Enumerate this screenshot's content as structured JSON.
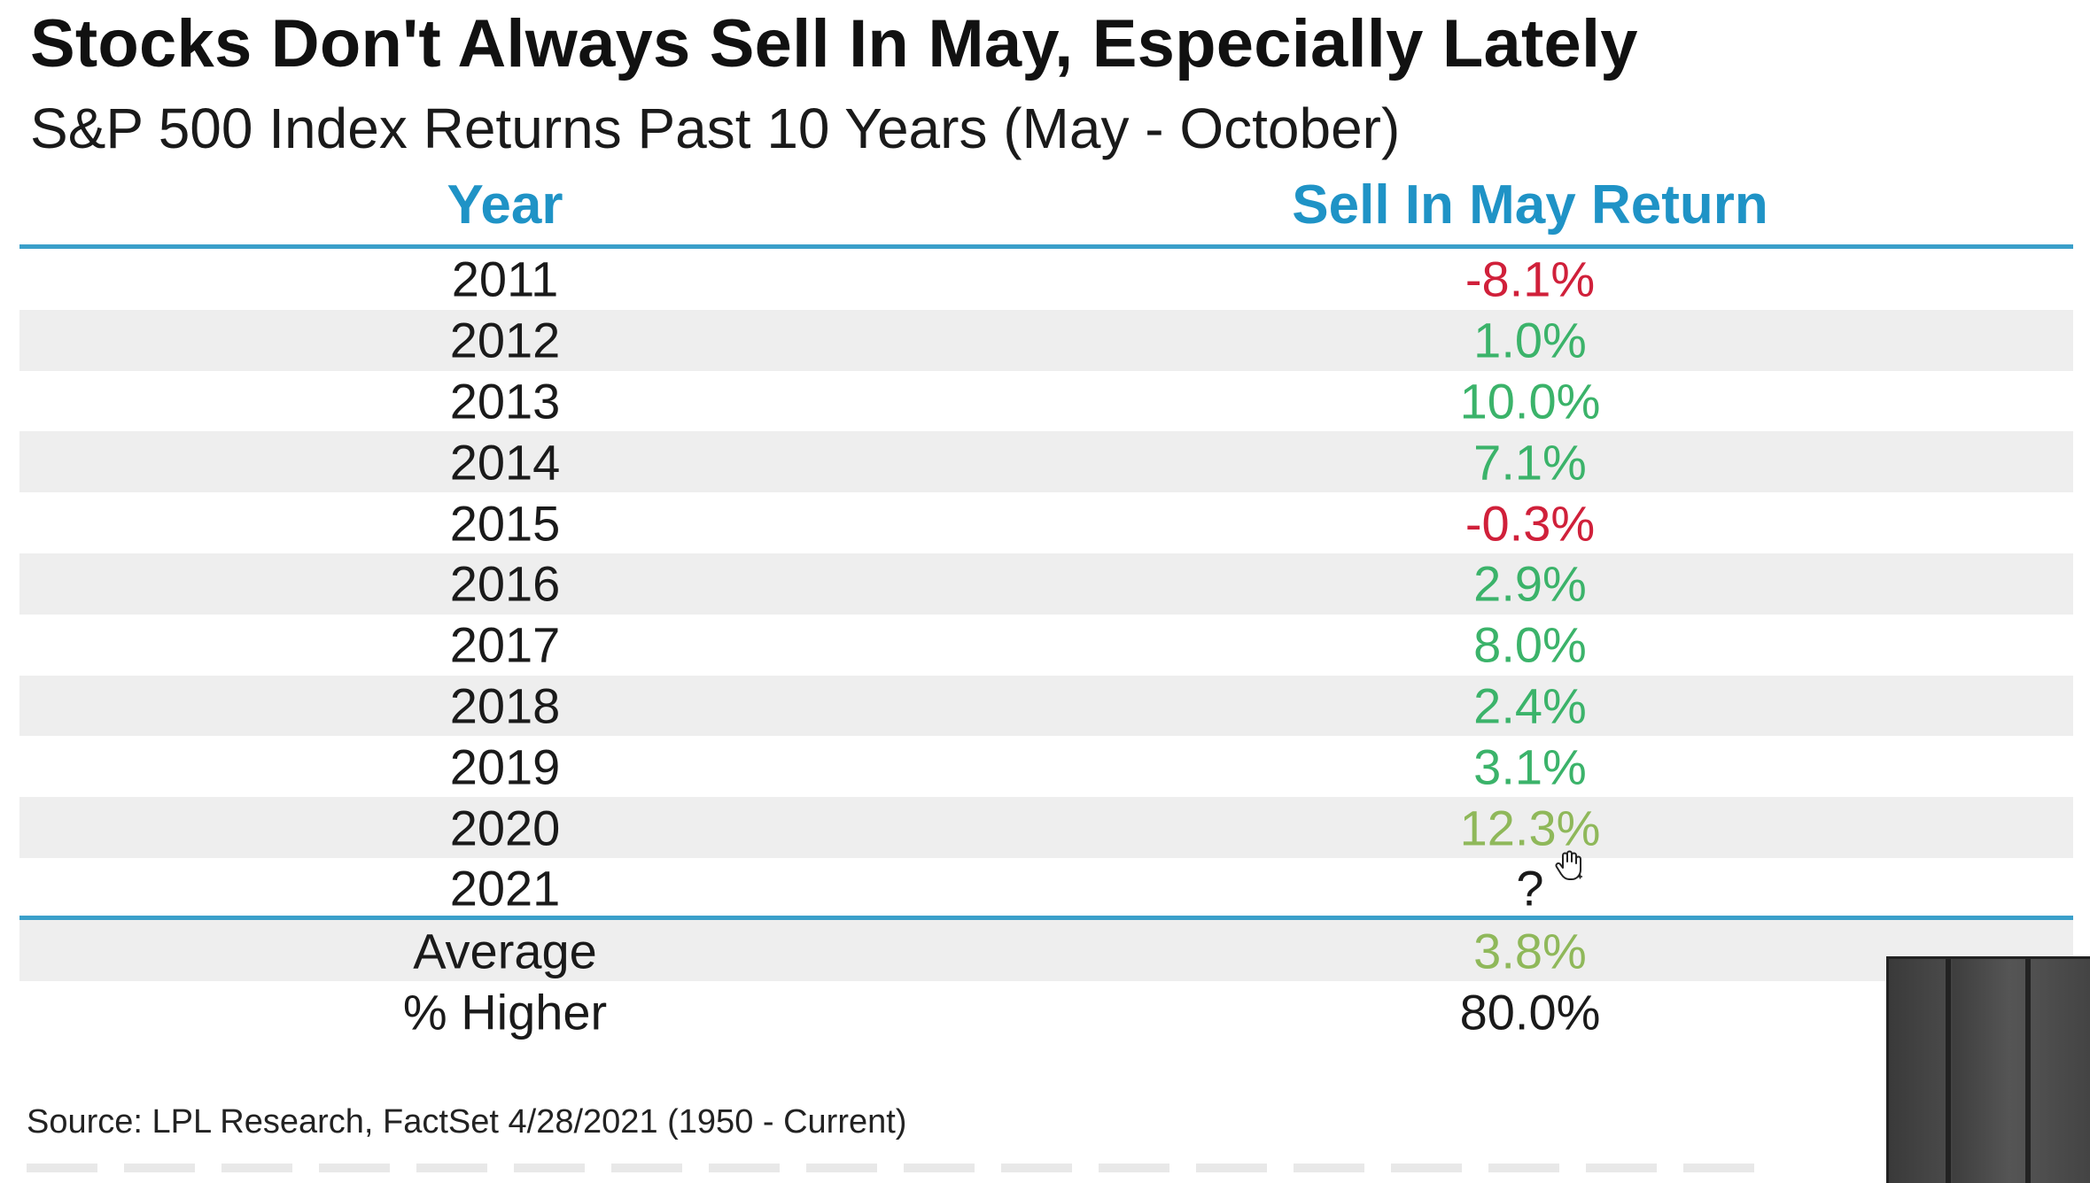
{
  "colors": {
    "header_blue": "#1f93c6",
    "rule_blue": "#3a9fca",
    "positive_green": "#3bb36a",
    "negative_red": "#d0203a",
    "olive_green": "#8fb85a",
    "row_shade": "#eeeeee"
  },
  "chart_data": {
    "type": "table",
    "title": "Stocks Don't Always Sell In May, Especially Lately",
    "subtitle": "S&P 500 Index Returns Past 10 Years (May - October)",
    "columns": [
      "Year",
      "Sell In May Return"
    ],
    "rows": [
      {
        "year": "2011",
        "return": "-8.1%",
        "value": -8.1,
        "tone": "negative"
      },
      {
        "year": "2012",
        "return": "1.0%",
        "value": 1.0,
        "tone": "positive"
      },
      {
        "year": "2013",
        "return": "10.0%",
        "value": 10.0,
        "tone": "positive"
      },
      {
        "year": "2014",
        "return": "7.1%",
        "value": 7.1,
        "tone": "positive"
      },
      {
        "year": "2015",
        "return": "-0.3%",
        "value": -0.3,
        "tone": "negative"
      },
      {
        "year": "2016",
        "return": "2.9%",
        "value": 2.9,
        "tone": "positive"
      },
      {
        "year": "2017",
        "return": "8.0%",
        "value": 8.0,
        "tone": "positive"
      },
      {
        "year": "2018",
        "return": "2.4%",
        "value": 2.4,
        "tone": "positive"
      },
      {
        "year": "2019",
        "return": "3.1%",
        "value": 3.1,
        "tone": "positive"
      },
      {
        "year": "2020",
        "return": "12.3%",
        "value": 12.3,
        "tone": "olive"
      },
      {
        "year": "2021",
        "return": "?",
        "value": null,
        "tone": "neutral"
      }
    ],
    "summary": [
      {
        "label": "Average",
        "value": "3.8%",
        "tone": "olive"
      },
      {
        "label": "% Higher",
        "value": "80.0%",
        "tone": "neutral"
      }
    ],
    "source": "Source: LPL Research, FactSet 4/28/2021 (1950 - Current)"
  }
}
